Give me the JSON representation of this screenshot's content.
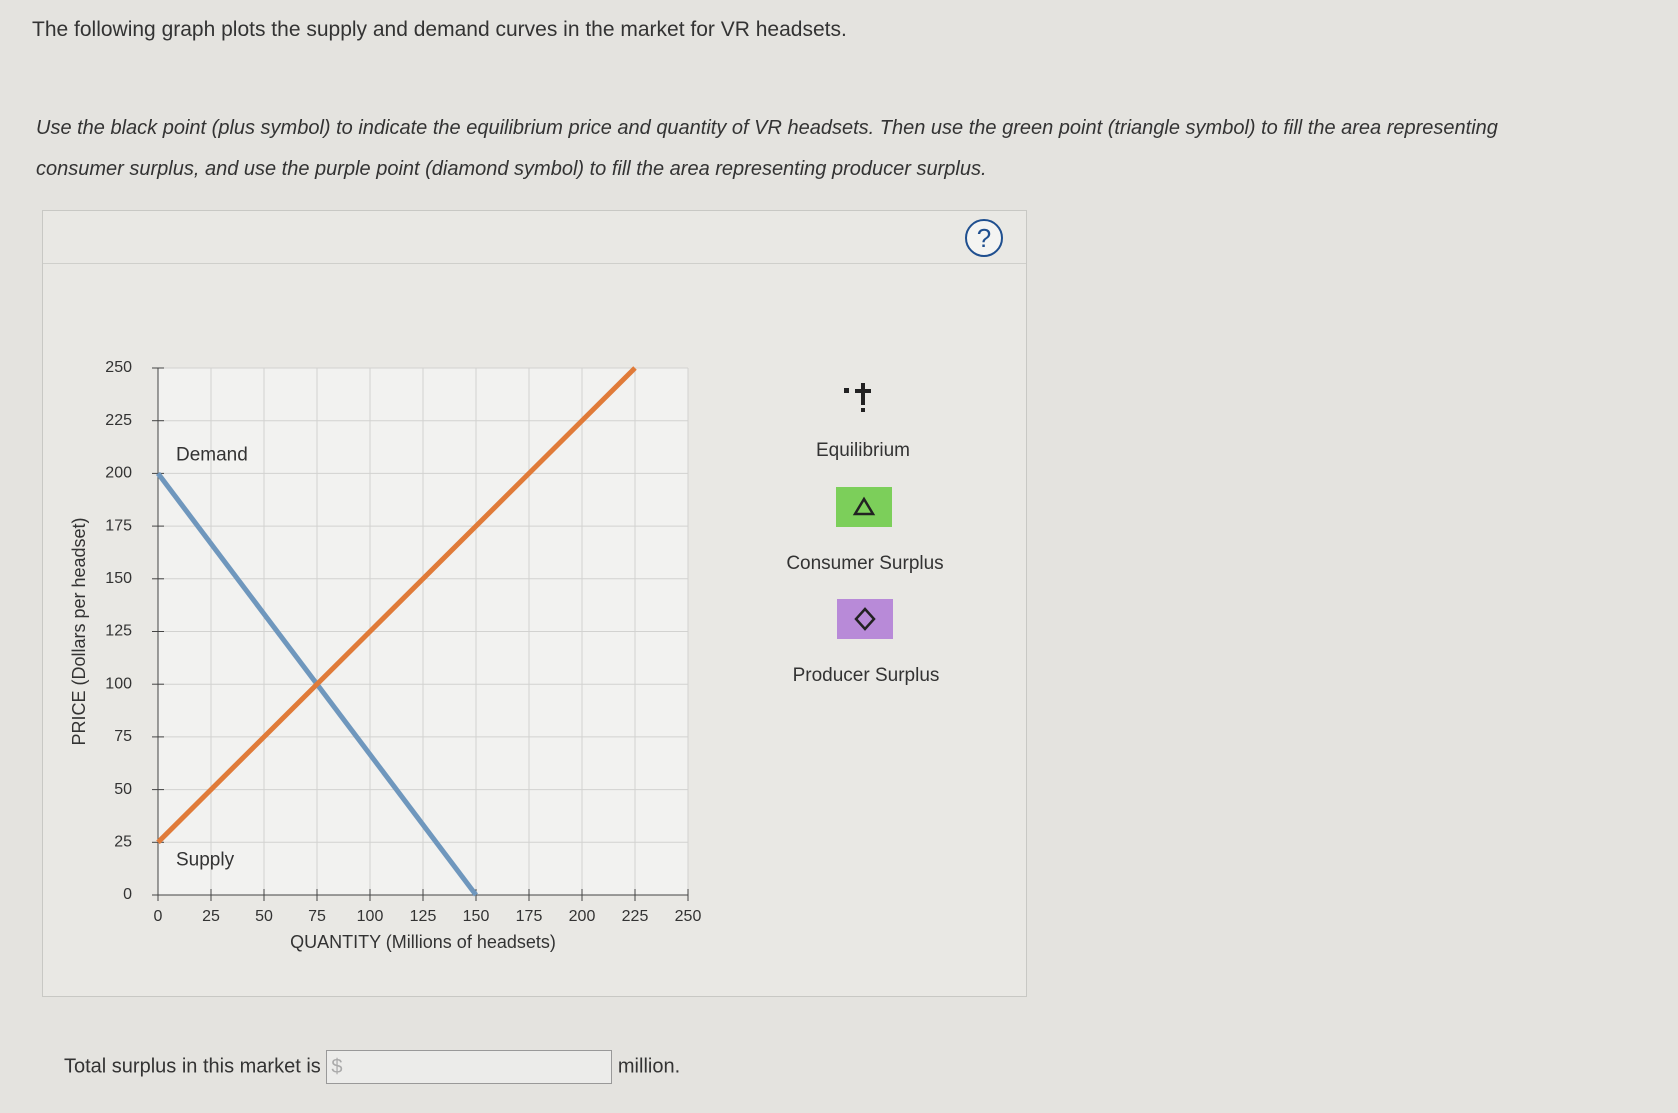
{
  "header": {
    "intro": "The following graph plots the supply and demand curves in the market for VR headsets.",
    "instructions": "Use the black point (plus symbol) to indicate the equilibrium price and quantity of VR headsets. Then use the green point (triangle symbol) to fill the area representing consumer surplus, and use the purple point (diamond symbol) to fill the area representing producer surplus."
  },
  "help": "?",
  "tools": [
    {
      "label": "Equilibrium"
    },
    {
      "label": "Consumer Surplus"
    },
    {
      "label": "Producer Surplus"
    }
  ],
  "chart_data": {
    "type": "line",
    "xlabel": "QUANTITY (Millions of headsets)",
    "ylabel": "PRICE (Dollars per headset)",
    "series": [
      {
        "name": "Demand",
        "color": "#6f97bd",
        "x": [
          0,
          150
        ],
        "values": [
          200,
          0
        ]
      },
      {
        "name": "Supply",
        "color": "#e07b39",
        "x": [
          0,
          225
        ],
        "values": [
          25,
          250
        ]
      }
    ],
    "xlim": [
      0,
      250
    ],
    "ylim": [
      0,
      250
    ],
    "xticks": [
      0,
      25,
      50,
      75,
      100,
      125,
      150,
      175,
      200,
      225,
      250
    ],
    "yticks": [
      0,
      25,
      50,
      75,
      100,
      125,
      150,
      175,
      200,
      225,
      250
    ],
    "grid": true
  },
  "answer": {
    "prompt": "Total surplus in this market is",
    "currency": "$",
    "unit": "million."
  }
}
